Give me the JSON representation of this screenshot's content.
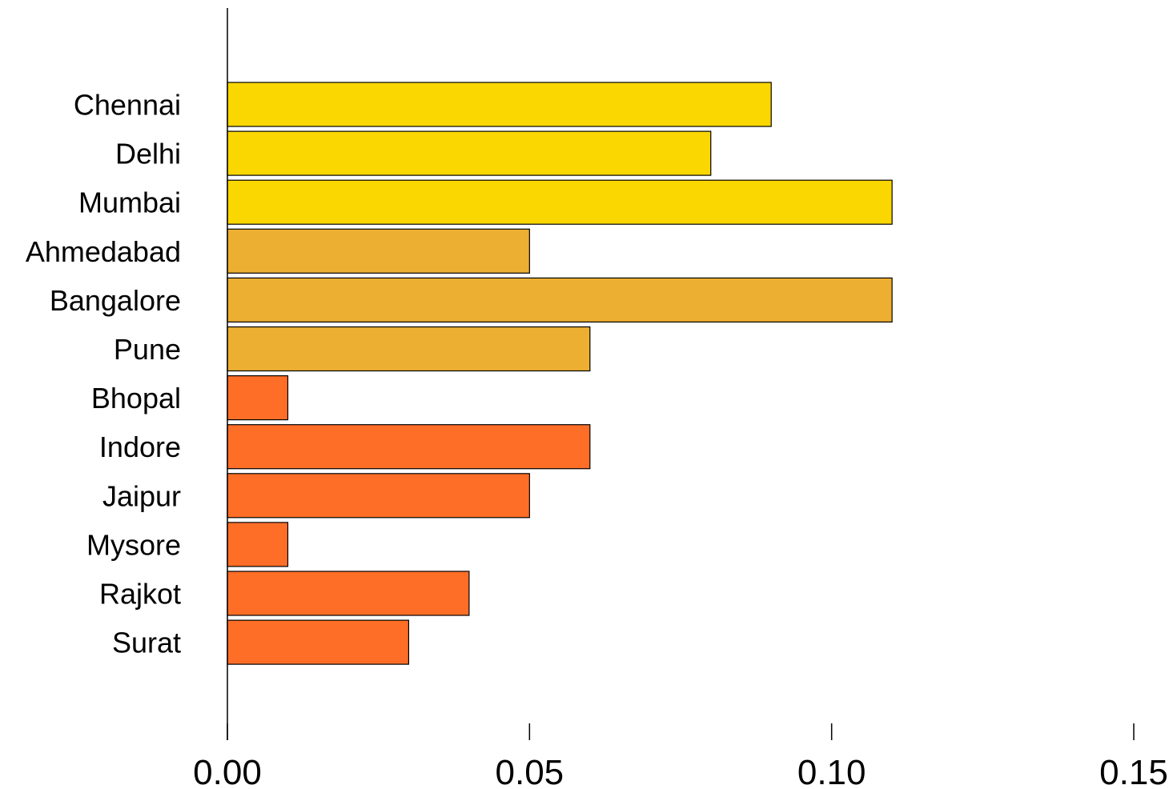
{
  "chart_data": {
    "type": "bar",
    "orientation": "horizontal",
    "title": "",
    "xlabel": "",
    "ylabel": "",
    "categories": [
      "Chennai",
      "Delhi",
      "Mumbai",
      "Ahmedabad",
      "Bangalore",
      "Pune",
      "Bhopal",
      "Indore",
      "Jaipur",
      "Mysore",
      "Rajkot",
      "Surat"
    ],
    "values": [
      0.09,
      0.08,
      0.11,
      0.05,
      0.11,
      0.06,
      0.01,
      0.06,
      0.05,
      0.01,
      0.04,
      0.03
    ],
    "colors": [
      "#FAD700",
      "#FAD700",
      "#FAD700",
      "#EDAF32",
      "#EDAF32",
      "#EDAF32",
      "#FF6E27",
      "#FF6E27",
      "#FF6E27",
      "#FF6E27",
      "#FF6E27",
      "#FF6E27"
    ],
    "xlim": [
      0,
      0.15
    ],
    "xticks": [
      0.0,
      0.05,
      0.1,
      0.15
    ],
    "xtick_labels": [
      "0.00",
      "0.05",
      "0.10",
      "0.15"
    ],
    "grid": false,
    "legend": "none"
  }
}
